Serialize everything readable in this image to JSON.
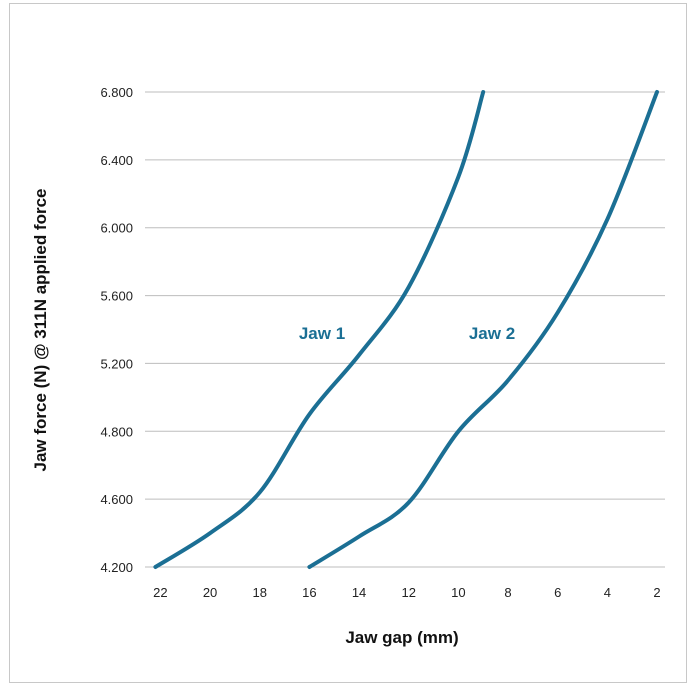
{
  "chart_data": {
    "type": "line",
    "xlabel": "Jaw gap (mm)",
    "ylabel": "Jaw force (N) @ 311N applied force",
    "x_ticks": [
      "22",
      "20",
      "18",
      "16",
      "14",
      "12",
      "10",
      "8",
      "6",
      "4",
      "2"
    ],
    "x_reversed": true,
    "xlim": [
      22.5,
      1.8
    ],
    "y_ticks": [
      "4.200",
      "4.600",
      "4.800",
      "5.200",
      "5.600",
      "6.000",
      "6.400",
      "6.800"
    ],
    "grid": true,
    "series": [
      {
        "name": "Jaw 1",
        "color": "#1b6f94",
        "x": [
          22.2,
          20,
          18,
          16,
          14,
          12,
          10,
          9.0
        ],
        "y": [
          4.2,
          4.4,
          4.62,
          4.9,
          5.25,
          5.65,
          6.3,
          6.8
        ]
      },
      {
        "name": "Jaw 2",
        "color": "#1b6f94",
        "x": [
          16,
          14,
          12,
          10,
          8,
          6,
          4,
          2
        ],
        "y": [
          4.2,
          4.38,
          4.58,
          4.8,
          5.1,
          5.5,
          6.05,
          6.8
        ]
      }
    ]
  }
}
